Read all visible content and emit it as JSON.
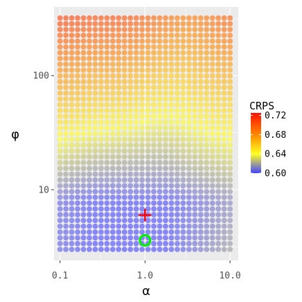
{
  "chart_data": {
    "type": "scatter",
    "title": "",
    "xlabel": "α",
    "ylabel": "φ",
    "x_scale": "log",
    "y_scale": "log",
    "xlim": [
      0.085,
      12.5
    ],
    "ylim": [
      2.4,
      400
    ],
    "x_ticks": [
      0.1,
      1.0,
      10.0
    ],
    "x_tick_labels": [
      "0.1",
      "1.0",
      "10.0"
    ],
    "y_ticks": [
      10,
      100
    ],
    "y_tick_labels": [
      "10",
      "100"
    ],
    "grid": true,
    "panel_background": "#ebebeb",
    "grid_color": "#ffffff",
    "points": {
      "x_min": 0.1,
      "x_max": 10.0,
      "n_x": 30,
      "y_min": 3.0,
      "y_max": 320,
      "n_y": 41,
      "description": "grid of (α, φ) combinations colored by CRPS"
    },
    "color_scale": {
      "variable": "CRPS",
      "min": 0.6,
      "max": 0.725,
      "stops": [
        {
          "value": 0.6,
          "color": "#4444ff"
        },
        {
          "value": 0.64,
          "color": "#ffff22"
        },
        {
          "value": 0.68,
          "color": "#ff8800"
        },
        {
          "value": 0.725,
          "color": "#ff1100"
        }
      ],
      "point_alpha": 0.6
    },
    "legend": {
      "title": "CRPS",
      "placement": "right",
      "ticks": [
        0.6,
        0.64,
        0.68,
        0.72
      ],
      "tick_labels": [
        "0.60",
        "0.64",
        "0.68",
        "0.72"
      ]
    },
    "annotations": [
      {
        "kind": "cross",
        "x": 1.0,
        "y": 6.0,
        "color": "#ff0000"
      },
      {
        "kind": "circle",
        "x": 1.0,
        "y": 3.6,
        "color": "#00ee00"
      }
    ]
  }
}
